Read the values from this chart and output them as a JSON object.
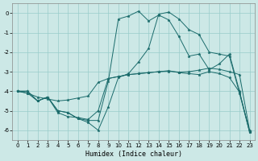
{
  "xlabel": "Humidex (Indice chaleur)",
  "bg_color": "#cce8e6",
  "grid_color": "#99ccca",
  "line_color": "#1a6b6b",
  "xlim": [
    -0.5,
    23.5
  ],
  "ylim": [
    -6.5,
    0.5
  ],
  "xticks": [
    0,
    1,
    2,
    3,
    4,
    5,
    6,
    7,
    8,
    9,
    10,
    11,
    12,
    13,
    14,
    15,
    16,
    17,
    18,
    19,
    20,
    21,
    22,
    23
  ],
  "yticks": [
    0,
    -1,
    -2,
    -3,
    -4,
    -5,
    -6
  ],
  "curves": [
    {
      "name": "line_top",
      "x": [
        0,
        1,
        2,
        3,
        4,
        5,
        6,
        7,
        8,
        9,
        10,
        11,
        12,
        13,
        14,
        15,
        16,
        17,
        18,
        19,
        20,
        21,
        22,
        23
      ],
      "y": [
        -4.0,
        -4.0,
        -4.5,
        -4.3,
        -5.0,
        -5.1,
        -5.4,
        -5.6,
        -6.0,
        -4.8,
        -3.3,
        -3.1,
        -2.5,
        -1.8,
        -0.05,
        0.05,
        -0.3,
        -0.85,
        -1.1,
        -2.0,
        -2.1,
        -2.2,
        -4.1,
        -6.1
      ],
      "markers": [
        0,
        1,
        2,
        3,
        4,
        5,
        6,
        7,
        8,
        9,
        10,
        11,
        12,
        13,
        14,
        15,
        16,
        17,
        18,
        19,
        20,
        21,
        22,
        23
      ]
    },
    {
      "name": "line_second",
      "x": [
        0,
        1,
        2,
        3,
        4,
        5,
        6,
        7,
        8,
        9,
        10,
        11,
        12,
        13,
        14,
        15,
        16,
        17,
        18,
        19,
        20,
        21,
        22,
        23
      ],
      "y": [
        -4.0,
        -4.0,
        -4.5,
        -4.3,
        -5.0,
        -5.1,
        -5.4,
        -5.5,
        -5.5,
        -3.5,
        -0.3,
        -0.15,
        0.1,
        -0.4,
        -0.1,
        -0.35,
        -1.2,
        -2.2,
        -2.1,
        -2.9,
        -2.6,
        -2.1,
        -4.0,
        -6.1
      ],
      "markers": [
        0,
        1,
        2,
        3,
        4,
        5,
        6,
        7,
        8,
        9,
        10,
        11,
        12,
        13,
        14,
        15,
        16,
        17,
        18,
        19,
        20,
        21,
        22,
        23
      ]
    },
    {
      "name": "line_mid",
      "x": [
        0,
        1,
        2,
        3,
        4,
        5,
        6,
        7,
        8,
        9,
        10,
        11,
        12,
        13,
        14,
        15,
        16,
        17,
        18,
        19,
        20,
        21,
        22,
        23
      ],
      "y": [
        -4.0,
        -4.1,
        -4.5,
        -4.3,
        -5.1,
        -5.3,
        -5.35,
        -5.45,
        -5.0,
        -3.35,
        -3.25,
        -3.15,
        -3.1,
        -3.05,
        -3.0,
        -2.95,
        -3.05,
        -3.1,
        -3.15,
        -3.0,
        -3.1,
        -3.3,
        -4.05,
        -6.05
      ],
      "markers": [
        0,
        1,
        2,
        3,
        4,
        5,
        6,
        7,
        8,
        9,
        10,
        11,
        12,
        13,
        14,
        15,
        16,
        17,
        18,
        19,
        20,
        21,
        22,
        23
      ]
    },
    {
      "name": "line_flat",
      "x": [
        0,
        1,
        2,
        3,
        4,
        5,
        6,
        7,
        8,
        9,
        10,
        11,
        12,
        13,
        14,
        15,
        16,
        17,
        18,
        19,
        20,
        21,
        22,
        23
      ],
      "y": [
        -4.0,
        -4.1,
        -4.3,
        -4.4,
        -4.5,
        -4.45,
        -4.35,
        -4.25,
        -3.55,
        -3.35,
        -3.25,
        -3.15,
        -3.1,
        -3.05,
        -3.0,
        -2.98,
        -3.02,
        -3.0,
        -2.92,
        -2.82,
        -2.88,
        -3.0,
        -3.15,
        -6.0
      ],
      "markers": [
        0,
        1,
        2,
        3,
        4,
        5,
        6,
        7,
        8,
        9,
        10,
        11,
        12,
        13,
        14,
        15,
        16,
        17,
        18,
        19,
        20,
        21,
        22,
        23
      ]
    }
  ],
  "xlabel_fontsize": 6,
  "tick_fontsize": 5,
  "linewidth": 0.7,
  "markersize": 2.5
}
